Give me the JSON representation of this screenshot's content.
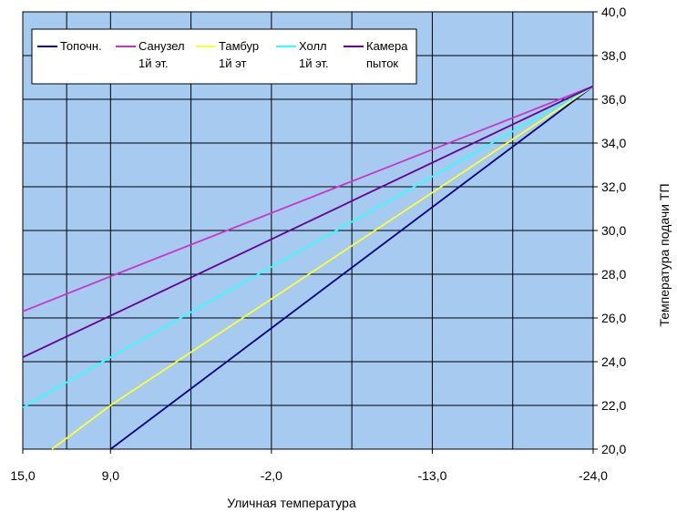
{
  "chart_data": {
    "type": "line",
    "x": [
      15,
      9,
      -2,
      -13,
      -24
    ],
    "x_tick_labels": [
      "15,0",
      "9,0",
      "-2,0",
      "-13,0",
      "-24,0"
    ],
    "xlabel": "Уличная температура",
    "ylabel": "Температура подачи ТП",
    "ylim": [
      20,
      40
    ],
    "y_tick_labels": [
      "20,0",
      "22,0",
      "24,0",
      "26,0",
      "28,0",
      "30,0",
      "32,0",
      "34,0",
      "36,0",
      "38,0",
      "40,0"
    ],
    "y_axis_side": "right",
    "grid": true,
    "legend_position": "top-left",
    "background_color": "#a6caf0",
    "grid_color": "#000000",
    "series": [
      {
        "name_lines": [
          "Топочн."
        ],
        "color": "#000080",
        "points": [
          [
            9,
            20
          ],
          [
            -24,
            36.6
          ]
        ]
      },
      {
        "name_lines": [
          "Санузел",
          "1й эт."
        ],
        "color": "#cc33cc",
        "points": [
          [
            15,
            26.3
          ],
          [
            9,
            27.9
          ],
          [
            -24,
            36.6
          ]
        ]
      },
      {
        "name_lines": [
          "Тамбур",
          "1й эт"
        ],
        "color": "#ffff33",
        "points": [
          [
            13,
            20
          ],
          [
            9,
            22
          ],
          [
            -24,
            36.6
          ]
        ]
      },
      {
        "name_lines": [
          "Холл",
          "1й эт."
        ],
        "color": "#33ffff",
        "points": [
          [
            15,
            21.9
          ],
          [
            9,
            24.2
          ],
          [
            -24,
            36.6
          ]
        ]
      },
      {
        "name_lines": [
          "Камера",
          "пыток"
        ],
        "color": "#660099",
        "points": [
          [
            15,
            24.2
          ],
          [
            9,
            26.1
          ],
          [
            -24,
            36.6
          ]
        ]
      }
    ]
  }
}
